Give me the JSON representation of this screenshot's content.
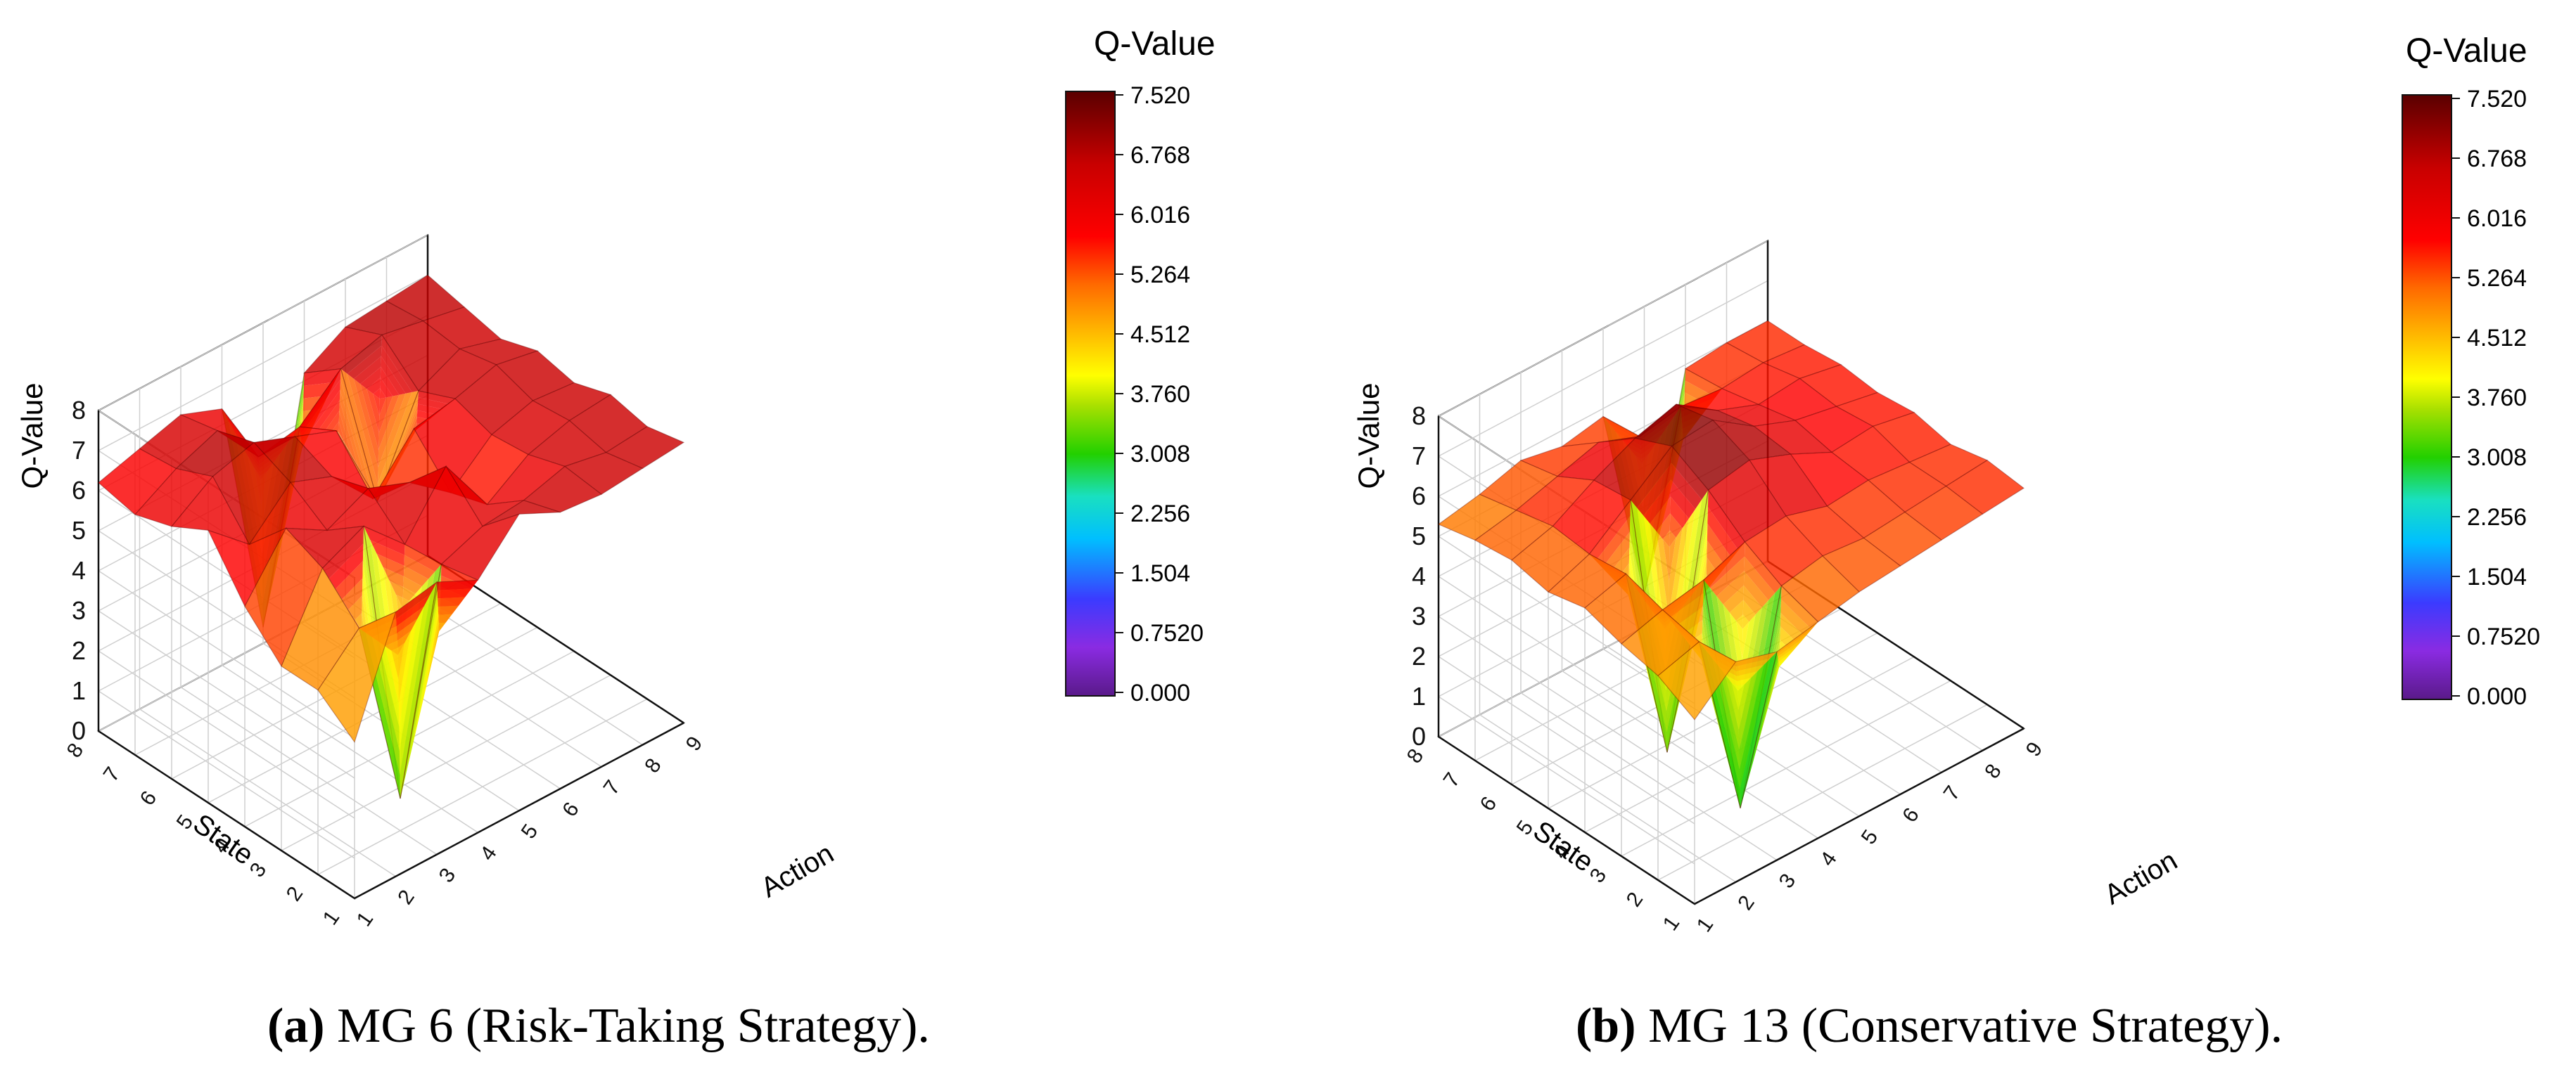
{
  "colormap": {
    "stops": [
      "#6a1b9a",
      "#8a2be2",
      "#3b3bff",
      "#00bfff",
      "#19e0c0",
      "#22d000",
      "#a8e000",
      "#ffff00",
      "#ffb000",
      "#ff6a00",
      "#ff0000",
      "#c80000",
      "#6a0000"
    ]
  },
  "chart_data": [
    {
      "type": "surface3d",
      "id": "a",
      "caption_label": "(a)",
      "caption_text": " MG 6 (Risk-Taking Strategy).",
      "zlabel": "Q-Value",
      "xlabel": "Action",
      "ylabel": "State",
      "colorbar_title": "Q-Value",
      "colorbar_ticks": [
        "7.520",
        "6.768",
        "6.016",
        "5.264",
        "4.512",
        "3.760",
        "3.008",
        "2.256",
        "1.504",
        "0.7520",
        "0.000"
      ],
      "zlim": [
        0,
        8
      ],
      "z_ticks": [
        "0",
        "1",
        "2",
        "3",
        "4",
        "5",
        "6",
        "7",
        "8"
      ],
      "x_ticks": [
        "1",
        "2",
        "3",
        "4",
        "5",
        "6",
        "7",
        "8",
        "9"
      ],
      "y_ticks": [
        "1",
        "2",
        "3",
        "4",
        "5",
        "6",
        "7",
        "8"
      ],
      "z": [
        [
          6.2,
          6.5,
          6.8,
          6.4,
          0.4,
          6.2,
          6.8,
          6.9,
          7.0
        ],
        [
          6.0,
          6.6,
          7.0,
          5.8,
          6.0,
          6.9,
          7.2,
          7.0,
          6.8
        ],
        [
          6.3,
          7.0,
          7.3,
          6.9,
          6.5,
          4.2,
          6.4,
          6.9,
          6.6
        ],
        [
          6.8,
          5.9,
          6.9,
          6.5,
          5.4,
          6.6,
          6.8,
          7.1,
          6.9
        ],
        [
          5.5,
          6.9,
          6.3,
          6.8,
          6.4,
          5.6,
          6.5,
          6.8,
          6.7
        ],
        [
          4.6,
          6.5,
          7.0,
          6.0,
          7.4,
          5.9,
          6.6,
          6.9,
          7.0
        ],
        [
          4.6,
          5.6,
          0.8,
          6.1,
          6.5,
          6.6,
          6.9,
          6.7,
          6.8
        ],
        [
          3.9,
          6.6,
          6.8,
          6.3,
          7.4,
          6.9,
          6.8,
          6.9,
          7.0
        ]
      ]
    },
    {
      "type": "surface3d",
      "id": "b",
      "caption_label": "(b)",
      "caption_text": " MG 13 (Conservative Strategy).",
      "zlabel": "Q-Value",
      "xlabel": "Action",
      "ylabel": "State",
      "colorbar_title": "Q-Value",
      "colorbar_ticks": [
        "7.520",
        "6.768",
        "6.016",
        "5.264",
        "4.512",
        "3.760",
        "3.008",
        "2.256",
        "1.504",
        "0.7520",
        "0.000"
      ],
      "zlim": [
        0,
        8
      ],
      "z_ticks": [
        "0",
        "1",
        "2",
        "3",
        "4",
        "5",
        "6",
        "7",
        "8"
      ],
      "x_ticks": [
        "1",
        "2",
        "3",
        "4",
        "5",
        "6",
        "7",
        "8",
        "9"
      ],
      "y_ticks": [
        "1",
        "2",
        "3",
        "4",
        "5",
        "6",
        "7",
        "8"
      ],
      "z": [
        [
          5.3,
          5.5,
          5.8,
          5.6,
          5.8,
          0.8,
          5.9,
          6.0,
          6.0
        ],
        [
          5.5,
          5.7,
          6.0,
          6.3,
          5.9,
          6.1,
          6.0,
          6.1,
          6.0
        ],
        [
          5.6,
          5.9,
          6.5,
          7.0,
          7.3,
          6.6,
          6.2,
          6.3,
          6.1
        ],
        [
          5.4,
          5.8,
          6.6,
          7.4,
          7.5,
          6.8,
          6.4,
          6.2,
          6.0
        ],
        [
          5.6,
          5.9,
          0.9,
          6.9,
          7.1,
          6.7,
          6.2,
          6.3,
          6.1
        ],
        [
          5.3,
          5.6,
          5.8,
          6.2,
          6.3,
          6.0,
          6.1,
          6.0,
          5.9
        ],
        [
          5.1,
          5.4,
          0.7,
          5.7,
          5.9,
          5.8,
          5.9,
          6.0,
          6.1
        ],
        [
          4.6,
          5.5,
          5.2,
          5.4,
          5.6,
          5.7,
          5.8,
          5.9,
          6.0
        ]
      ]
    }
  ]
}
